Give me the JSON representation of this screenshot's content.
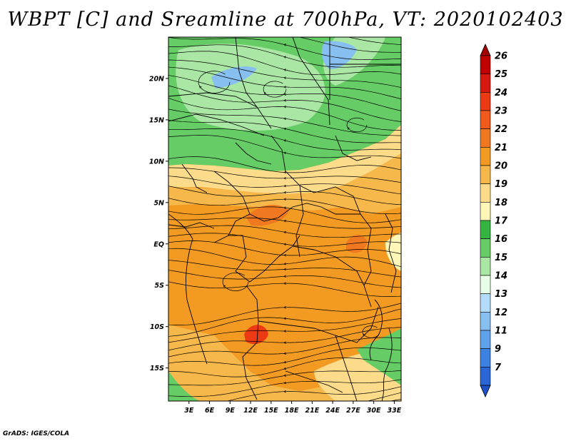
{
  "title": "WBPT [C] and Sreamline at 700hPa, VT: 2020102403",
  "credit": "GrADS: IGES/COLA",
  "map": {
    "variable": "WBPT [C]",
    "level": "700hPa",
    "valid_time": "2020102403",
    "lat_range": [
      -19,
      25
    ],
    "lon_range": [
      0,
      34
    ],
    "lat_ticks": [
      {
        "value": 20,
        "label": "20N"
      },
      {
        "value": 15,
        "label": "15N"
      },
      {
        "value": 10,
        "label": "10N"
      },
      {
        "value": 5,
        "label": "5N"
      },
      {
        "value": 0,
        "label": "EQ"
      },
      {
        "value": -5,
        "label": "5S"
      },
      {
        "value": -10,
        "label": "10S"
      },
      {
        "value": -15,
        "label": "15S"
      }
    ],
    "lon_ticks": [
      {
        "value": 3,
        "label": "3E"
      },
      {
        "value": 6,
        "label": "6E"
      },
      {
        "value": 9,
        "label": "9E"
      },
      {
        "value": 12,
        "label": "12E"
      },
      {
        "value": 15,
        "label": "15E"
      },
      {
        "value": 18,
        "label": "18E"
      },
      {
        "value": 21,
        "label": "21E"
      },
      {
        "value": 24,
        "label": "24E"
      },
      {
        "value": 27,
        "label": "27E"
      },
      {
        "value": 30,
        "label": "30E"
      },
      {
        "value": 33,
        "label": "33E"
      }
    ]
  },
  "colorbar": {
    "levels": [
      {
        "label": "26",
        "color": "#c00000"
      },
      {
        "label": "25",
        "color": "#d81a0e"
      },
      {
        "label": "24",
        "color": "#ec3a14"
      },
      {
        "label": "23",
        "color": "#f05a1c"
      },
      {
        "label": "22",
        "color": "#f07820"
      },
      {
        "label": "21",
        "color": "#f29a22"
      },
      {
        "label": "20",
        "color": "#f6b84a"
      },
      {
        "label": "19",
        "color": "#fcdc8a"
      },
      {
        "label": "18",
        "color": "#fff6b8"
      },
      {
        "label": "17",
        "color": "#33b540"
      },
      {
        "label": "16",
        "color": "#66cc66"
      },
      {
        "label": "15",
        "color": "#aae6a4"
      },
      {
        "label": "14",
        "color": "#e6ffe6"
      },
      {
        "label": "13",
        "color": "#b4dcfa"
      },
      {
        "label": "12",
        "color": "#86bff0"
      },
      {
        "label": "11",
        "color": "#5ea2ea"
      },
      {
        "label": "9",
        "color": "#3c82e0"
      },
      {
        "label": "7",
        "color": "#2a66d6"
      }
    ],
    "top_color": "#a00000",
    "bottom_color": "#1e50c8"
  }
}
